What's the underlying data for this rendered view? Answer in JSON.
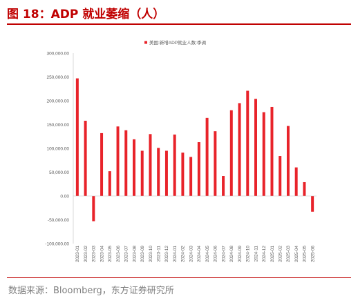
{
  "figure": {
    "title": "图 18：ADP 就业萎缩（人）",
    "source": "数据来源：Bloomberg，东方证券研究所"
  },
  "colors": {
    "bar": "#e8232a",
    "axis": "#bfbfbf",
    "title": "#c00000"
  },
  "chart_data": {
    "type": "bar",
    "title": "",
    "xlabel": "",
    "ylabel": "",
    "ylim": [
      -100000,
      300000
    ],
    "yticks": [
      300000,
      250000,
      200000,
      150000,
      100000,
      50000,
      0,
      -50000,
      -100000
    ],
    "ytick_labels": [
      "300,000.00",
      "250,000.00",
      "200,000.00",
      "150,000.00",
      "100,000.00",
      "50,000.00",
      "0.00",
      "-50,000.00",
      "-100,000.00"
    ],
    "grid": false,
    "legend_position": "top-center",
    "categories": [
      "2023-01",
      "2023-02",
      "2023-03",
      "2023-04",
      "2023-05",
      "2023-06",
      "2023-07",
      "2023-08",
      "2023-09",
      "2023-10",
      "2023-11",
      "2023-12",
      "2024-01",
      "2024-02",
      "2024-03",
      "2024-04",
      "2024-05",
      "2024-06",
      "2024-07",
      "2024-08",
      "2024-09",
      "2024-10",
      "2024-11",
      "2024-12",
      "2025-01",
      "2025-02",
      "2025-03",
      "2025-04",
      "2025-05",
      "2025-06"
    ],
    "series": [
      {
        "name": "美国:新增ADP就业人数:季调",
        "values": [
          247000,
          158000,
          -53000,
          132000,
          52000,
          146000,
          138000,
          119000,
          95000,
          130000,
          101000,
          95000,
          129000,
          91000,
          82000,
          113000,
          164000,
          136000,
          42000,
          180000,
          195000,
          221000,
          204000,
          176000,
          187000,
          84000,
          147000,
          60000,
          29000,
          -33000
        ]
      }
    ]
  }
}
